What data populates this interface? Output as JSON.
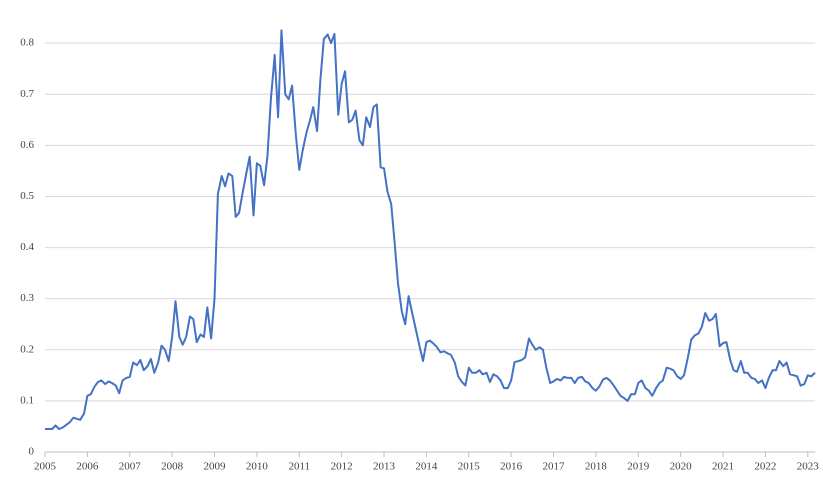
{
  "chart_data": {
    "type": "line",
    "color": "#4472c4",
    "grid": true,
    "xlim": [
      2005,
      2023.17
    ],
    "ylim": [
      0,
      0.85
    ],
    "xticks": [
      2005,
      2006,
      2007,
      2008,
      2009,
      2010,
      2011,
      2012,
      2013,
      2014,
      2015,
      2016,
      2017,
      2018,
      2019,
      2020,
      2021,
      2022,
      2023
    ],
    "yticks": [
      0,
      0.1,
      0.2,
      0.3,
      0.4,
      0.5,
      0.6,
      0.7,
      0.8
    ],
    "x": [
      2005,
      2005.08,
      2005.17,
      2005.25,
      2005.33,
      2005.42,
      2005.5,
      2005.58,
      2005.67,
      2005.75,
      2005.83,
      2005.92,
      2006,
      2006.08,
      2006.17,
      2006.25,
      2006.33,
      2006.42,
      2006.5,
      2006.58,
      2006.67,
      2006.75,
      2006.83,
      2006.92,
      2007,
      2007.08,
      2007.17,
      2007.25,
      2007.33,
      2007.42,
      2007.5,
      2007.58,
      2007.67,
      2007.75,
      2007.83,
      2007.92,
      2008,
      2008.08,
      2008.17,
      2008.25,
      2008.33,
      2008.42,
      2008.5,
      2008.58,
      2008.67,
      2008.75,
      2008.83,
      2008.92,
      2009,
      2009.08,
      2009.17,
      2009.25,
      2009.33,
      2009.42,
      2009.5,
      2009.58,
      2009.67,
      2009.75,
      2009.83,
      2009.92,
      2010,
      2010.08,
      2010.17,
      2010.25,
      2010.33,
      2010.42,
      2010.5,
      2010.58,
      2010.67,
      2010.75,
      2010.83,
      2010.92,
      2011,
      2011.08,
      2011.17,
      2011.25,
      2011.33,
      2011.42,
      2011.5,
      2011.58,
      2011.67,
      2011.75,
      2011.83,
      2011.92,
      2012,
      2012.08,
      2012.17,
      2012.25,
      2012.33,
      2012.42,
      2012.5,
      2012.58,
      2012.67,
      2012.75,
      2012.83,
      2012.92,
      2013,
      2013.08,
      2013.17,
      2013.25,
      2013.33,
      2013.42,
      2013.5,
      2013.58,
      2013.67,
      2013.75,
      2013.83,
      2013.92,
      2014,
      2014.08,
      2014.17,
      2014.25,
      2014.33,
      2014.42,
      2014.5,
      2014.58,
      2014.67,
      2014.75,
      2014.83,
      2014.92,
      2015,
      2015.08,
      2015.17,
      2015.25,
      2015.33,
      2015.42,
      2015.5,
      2015.58,
      2015.67,
      2015.75,
      2015.83,
      2015.92,
      2016,
      2016.08,
      2016.17,
      2016.25,
      2016.33,
      2016.42,
      2016.5,
      2016.58,
      2016.67,
      2016.75,
      2016.83,
      2016.92,
      2017,
      2017.08,
      2017.17,
      2017.25,
      2017.33,
      2017.42,
      2017.5,
      2017.58,
      2017.67,
      2017.75,
      2017.83,
      2017.92,
      2018,
      2018.08,
      2018.17,
      2018.25,
      2018.33,
      2018.42,
      2018.5,
      2018.58,
      2018.67,
      2018.75,
      2018.83,
      2018.92,
      2019,
      2019.08,
      2019.17,
      2019.25,
      2019.33,
      2019.42,
      2019.5,
      2019.58,
      2019.67,
      2019.75,
      2019.83,
      2019.92,
      2020,
      2020.08,
      2020.17,
      2020.25,
      2020.33,
      2020.42,
      2020.5,
      2020.58,
      2020.67,
      2020.75,
      2020.83,
      2020.92,
      2021,
      2021.08,
      2021.17,
      2021.25,
      2021.33,
      2021.42,
      2021.5,
      2021.58,
      2021.67,
      2021.75,
      2021.83,
      2021.92,
      2022,
      2022.08,
      2022.17,
      2022.25,
      2022.33,
      2022.42,
      2022.5,
      2022.58,
      2022.67,
      2022.75,
      2022.83,
      2022.92,
      2023,
      2023.08,
      2023.17
    ],
    "values": [
      0.045,
      0.045,
      0.045,
      0.052,
      0.045,
      0.048,
      0.053,
      0.058,
      0.067,
      0.065,
      0.063,
      0.075,
      0.11,
      0.113,
      0.128,
      0.137,
      0.14,
      0.133,
      0.138,
      0.135,
      0.13,
      0.115,
      0.14,
      0.145,
      0.147,
      0.175,
      0.17,
      0.18,
      0.16,
      0.168,
      0.182,
      0.155,
      0.175,
      0.208,
      0.2,
      0.178,
      0.225,
      0.295,
      0.225,
      0.21,
      0.225,
      0.265,
      0.26,
      0.215,
      0.23,
      0.225,
      0.283,
      0.222,
      0.3,
      0.505,
      0.54,
      0.52,
      0.545,
      0.54,
      0.46,
      0.468,
      0.51,
      0.545,
      0.578,
      0.463,
      0.565,
      0.56,
      0.522,
      0.58,
      0.69,
      0.777,
      0.655,
      0.825,
      0.7,
      0.69,
      0.717,
      0.62,
      0.552,
      0.59,
      0.625,
      0.648,
      0.675,
      0.628,
      0.73,
      0.808,
      0.817,
      0.8,
      0.818,
      0.66,
      0.72,
      0.745,
      0.645,
      0.65,
      0.668,
      0.61,
      0.6,
      0.655,
      0.636,
      0.675,
      0.68,
      0.557,
      0.555,
      0.51,
      0.485,
      0.41,
      0.33,
      0.275,
      0.25,
      0.305,
      0.27,
      0.24,
      0.21,
      0.178,
      0.215,
      0.218,
      0.212,
      0.205,
      0.195,
      0.197,
      0.193,
      0.19,
      0.175,
      0.148,
      0.138,
      0.13,
      0.165,
      0.155,
      0.155,
      0.16,
      0.152,
      0.155,
      0.137,
      0.152,
      0.148,
      0.14,
      0.125,
      0.125,
      0.14,
      0.176,
      0.178,
      0.18,
      0.185,
      0.222,
      0.21,
      0.2,
      0.205,
      0.2,
      0.165,
      0.135,
      0.138,
      0.143,
      0.14,
      0.147,
      0.145,
      0.145,
      0.135,
      0.145,
      0.147,
      0.138,
      0.135,
      0.125,
      0.12,
      0.128,
      0.142,
      0.145,
      0.14,
      0.13,
      0.12,
      0.11,
      0.105,
      0.1,
      0.113,
      0.113,
      0.135,
      0.14,
      0.125,
      0.12,
      0.11,
      0.125,
      0.135,
      0.14,
      0.165,
      0.163,
      0.16,
      0.148,
      0.143,
      0.15,
      0.185,
      0.22,
      0.228,
      0.232,
      0.245,
      0.272,
      0.257,
      0.26,
      0.27,
      0.207,
      0.213,
      0.215,
      0.18,
      0.16,
      0.157,
      0.178,
      0.155,
      0.155,
      0.145,
      0.143,
      0.135,
      0.14,
      0.125,
      0.145,
      0.16,
      0.16,
      0.178,
      0.168,
      0.175,
      0.152,
      0.15,
      0.148,
      0.13,
      0.133,
      0.15,
      0.148,
      0.155
    ]
  }
}
